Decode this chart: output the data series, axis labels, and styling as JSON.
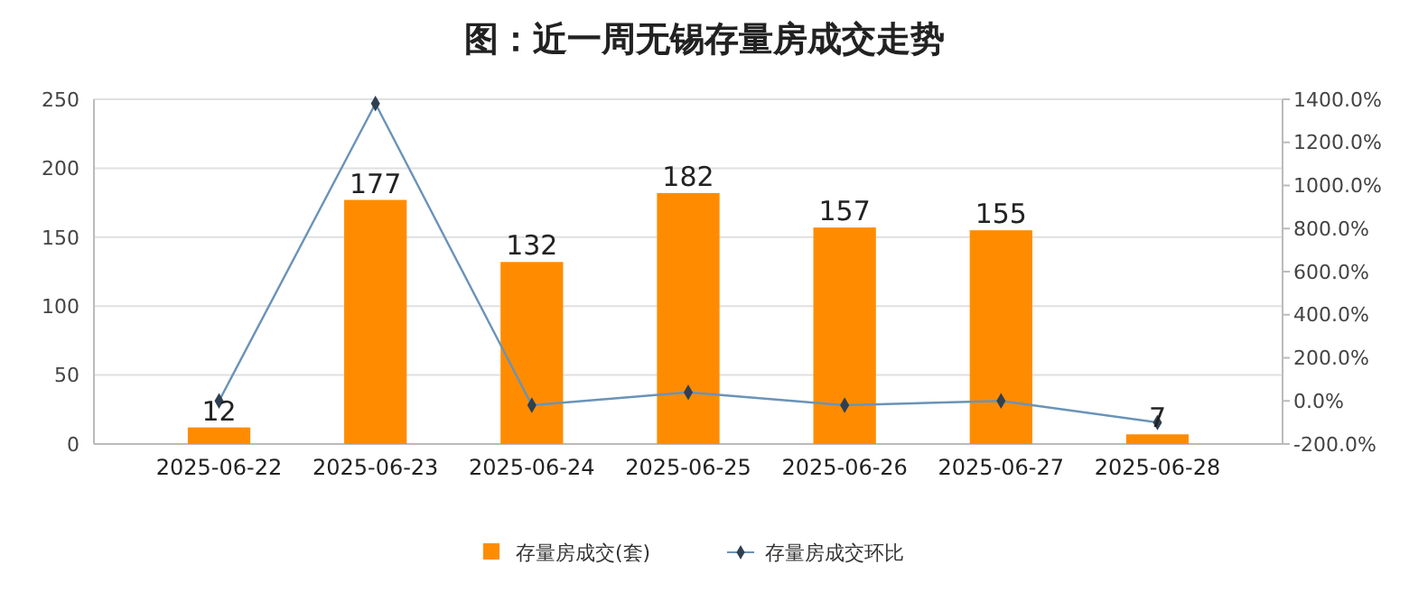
{
  "chart_data": {
    "type": "bar",
    "title": "图：近一周无锡存量房成交走势",
    "categories": [
      "2025-06-22",
      "2025-06-23",
      "2025-06-24",
      "2025-06-25",
      "2025-06-26",
      "2025-06-27",
      "2025-06-28"
    ],
    "series": [
      {
        "name": "存量房成交(套)",
        "color": "#ff8c00",
        "values": [
          12,
          177,
          132,
          182,
          157,
          155,
          7
        ],
        "value_labels": [
          "12",
          "177",
          "132",
          "182",
          "157",
          "155",
          "7"
        ]
      },
      {
        "name": "存量房成交环比",
        "type": "line",
        "axis": "y2",
        "color": "#6a93b8",
        "marker": "diamond",
        "values": [
          0,
          1380,
          -20,
          40,
          -20,
          0,
          -100
        ]
      }
    ],
    "ylim": [
      0,
      250
    ],
    "yticks": [
      0,
      50,
      100,
      150,
      200,
      250
    ],
    "y2lim": [
      -200,
      1400
    ],
    "y2ticks": [
      {
        "value": -200,
        "label": "-200.0%"
      },
      {
        "value": 0,
        "label": "0.0%"
      },
      {
        "value": 200,
        "label": "200.0%"
      },
      {
        "value": 400,
        "label": "400.0%"
      },
      {
        "value": 600,
        "label": "600.0%"
      },
      {
        "value": 800,
        "label": "800.0%"
      },
      {
        "value": 1000,
        "label": "1000.0%"
      },
      {
        "value": 1200,
        "label": "1200.0%"
      },
      {
        "value": 1400,
        "label": "1400.0%"
      }
    ],
    "grid": "y",
    "legend": "bottom"
  }
}
